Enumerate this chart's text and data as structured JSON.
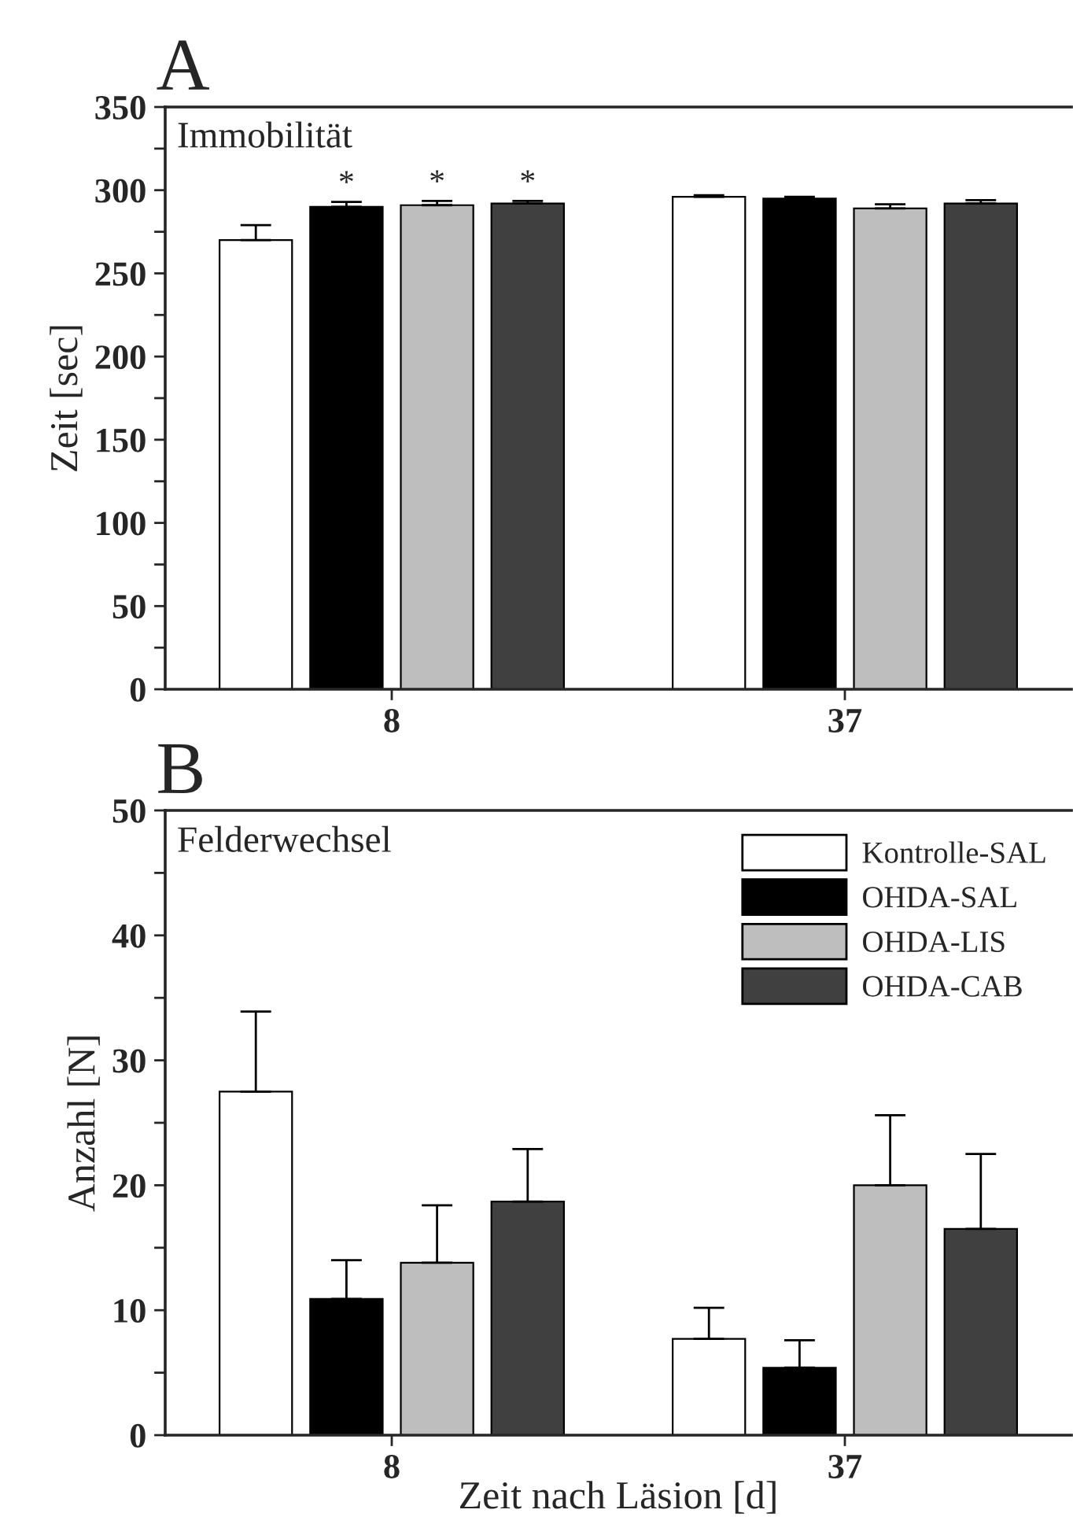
{
  "chart_data": [
    {
      "type": "bar",
      "title": "A",
      "ylabel": "Zeit [sec]",
      "categories": [
        "8",
        "37"
      ],
      "annotations": [
        "Immobilität"
      ],
      "ylim": [
        0,
        350
      ],
      "yticks": [
        0,
        {
          "value": 25,
          "label": null
        },
        50,
        {
          "value": 75,
          "label": null
        },
        100,
        {
          "value": 125,
          "label": null
        },
        150,
        {
          "value": 175,
          "label": null
        },
        200,
        {
          "value": 225,
          "label": null
        },
        250,
        {
          "value": 275,
          "label": null
        },
        300,
        {
          "value": 325,
          "label": null
        },
        350
      ],
      "grid": false,
      "legend": false,
      "series": [
        {
          "color": "#ffffff",
          "values": [
            270,
            296
          ],
          "errors": [
            [
              270,
              279
            ],
            [
              296,
              297
            ]
          ]
        },
        {
          "color": "#000000",
          "values": [
            290,
            295
          ],
          "errors": [
            [
              290,
              293
            ],
            [
              295,
              296
            ]
          ],
          "value_labels": [
            "*",
            null
          ]
        },
        {
          "color": "#bebebe",
          "values": [
            291,
            289
          ],
          "errors": [
            [
              291,
              293.5
            ],
            [
              289,
              291.5
            ]
          ],
          "value_labels": [
            "*",
            null
          ]
        },
        {
          "color": "#404040",
          "values": [
            292,
            292
          ],
          "errors": [
            [
              292,
              293.5
            ],
            [
              292,
              294
            ]
          ],
          "value_labels": [
            "*",
            null
          ]
        }
      ]
    },
    {
      "type": "bar",
      "title": "B",
      "ylabel": "Anzahl [N]",
      "xlabel": "Zeit nach Läsion [d]",
      "categories": [
        "8",
        "37"
      ],
      "annotations": [
        "Felderwechsel"
      ],
      "ylim": [
        0,
        50
      ],
      "yticks": [
        0,
        {
          "value": 5,
          "label": null
        },
        10,
        {
          "value": 15,
          "label": null
        },
        20,
        {
          "value": 25,
          "label": null
        },
        30,
        {
          "value": 35,
          "label": null
        },
        40,
        {
          "value": 45,
          "label": null
        },
        50
      ],
      "grid": false,
      "legend": "top right",
      "series": [
        {
          "name": "Kontrolle-SAL",
          "color": "#ffffff",
          "values": [
            27.5,
            7.7
          ],
          "errors": [
            [
              27.5,
              33.9
            ],
            [
              7.7,
              10.2
            ]
          ]
        },
        {
          "name": "OHDA-SAL",
          "color": "#000000",
          "values": [
            10.9,
            5.4
          ],
          "errors": [
            [
              10.9,
              14.0
            ],
            [
              5.4,
              7.6
            ]
          ]
        },
        {
          "name": "OHDA-LIS",
          "color": "#bebebe",
          "values": [
            13.8,
            20.0
          ],
          "errors": [
            [
              13.8,
              18.4
            ],
            [
              20.0,
              25.6
            ]
          ]
        },
        {
          "name": "OHDA-CAB",
          "color": "#404040",
          "values": [
            18.7,
            16.5
          ],
          "errors": [
            [
              18.7,
              22.9
            ],
            [
              16.5,
              22.5
            ]
          ]
        }
      ]
    }
  ]
}
